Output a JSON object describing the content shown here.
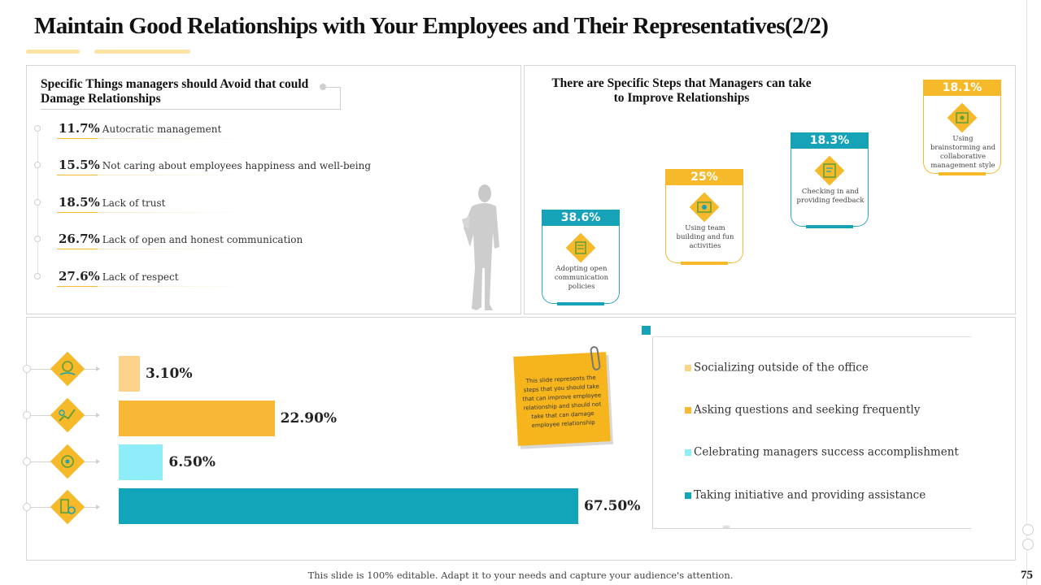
{
  "title": "Maintain Good Relationships with Your Employees and Their Representatives(2/2)",
  "avoid": {
    "heading": "Specific Things managers should Avoid that could Damage Relationships",
    "items": [
      {
        "pct": "11.7%",
        "label": "Autocratic management"
      },
      {
        "pct": "15.5%",
        "label": "Not caring about employees  happiness  and well-being"
      },
      {
        "pct": "18.5%",
        "label": "Lack of trust"
      },
      {
        "pct": "26.7%",
        "label": "Lack of open  and honest  communication"
      },
      {
        "pct": "27.6%",
        "label": "Lack of respect"
      }
    ]
  },
  "steps": {
    "heading": "There are Specific Steps that Managers can take to Improve Relationships",
    "cards": [
      {
        "pct": "38.6%",
        "text": "Adopting open communication policies",
        "color": "teal",
        "icon": "communication-icon"
      },
      {
        "pct": "25%",
        "text": "Using team building and fun activities",
        "color": "yellow",
        "icon": "team-building-icon"
      },
      {
        "pct": "18.3%",
        "text": "Checking in and providing feedback",
        "color": "teal",
        "icon": "feedback-icon"
      },
      {
        "pct": "18.1%",
        "text": "Using brainstorming and collaborative management style",
        "color": "yellow",
        "icon": "brainstorming-icon"
      }
    ]
  },
  "chart_data": {
    "type": "bar",
    "orientation": "horizontal",
    "categories": [
      "Socializing outside of the office",
      "Asking questions and seeking frequently",
      "Celebrating managers success accomplishment",
      "Taking initiative and providing assistance"
    ],
    "values": [
      3.1,
      22.9,
      6.5,
      67.5
    ],
    "value_labels": [
      "3.10%",
      "22.90%",
      "6.50%",
      "67.50%"
    ],
    "colors": [
      "#fbd38a",
      "#f8b737",
      "#8eedf8",
      "#12a5ba"
    ],
    "icons": [
      "hand-coin-icon",
      "growth-chart-icon",
      "handshake-icon",
      "money-bag-icon"
    ],
    "xlim": [
      0,
      70
    ],
    "legend_position": "right"
  },
  "note": "This slide represents the steps that you should take that can improve employee relationship and should not take that can damage employee relationship",
  "footer": "This slide is 100% editable.  Adapt it to your needs and capture your audience's  attention.",
  "page_number": "75",
  "colors": {
    "teal": "#16a3b8",
    "yellow": "#f6b929",
    "light_yellow": "#fce2a3"
  }
}
